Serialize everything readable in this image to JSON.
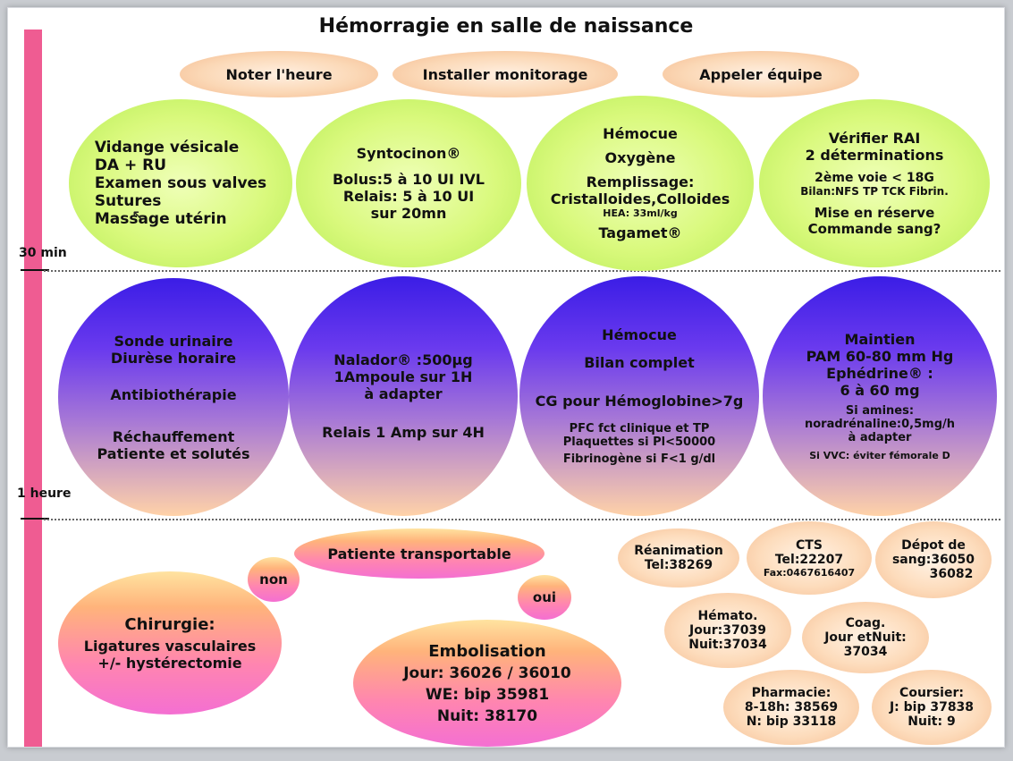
{
  "title": "Hémorragie en salle de naissance",
  "timeline": {
    "color": "#ef5c92",
    "mark_30": "30 min",
    "mark_60": "1 heure"
  },
  "header_pills": [
    "Noter l'heure",
    "Installer monitorage",
    "Appeler équipe"
  ],
  "phase1": {
    "c1": [
      "Vidange vésicale",
      "DA + RU",
      "Examen sous valves",
      "Sutures",
      "Massage utérin"
    ],
    "c2": [
      "Syntocinon®",
      "Bolus:5 à 10 UI IVL",
      "Relais: 5 à 10 UI",
      "sur 20mn"
    ],
    "c3": [
      "Hémocue",
      "Oxygène",
      "Remplissage:",
      "Cristalloides,Colloides",
      "HEA: 33ml/kg",
      "Tagamet®"
    ],
    "c4": [
      "Vérifier RAI",
      "2 déterminations",
      "2ème voie < 18G",
      "Bilan:NFS TP TCK Fibrin.",
      "Mise en réserve",
      "Commande sang?"
    ]
  },
  "phase2": {
    "c1": [
      "Sonde urinaire",
      "Diurèse horaire",
      "Antibiothérapie",
      "Réchauffement",
      "Patiente et solutés"
    ],
    "c2": [
      "Nalador® :500µg",
      "1Ampoule sur 1H",
      "à adapter",
      "Relais 1 Amp sur 4H"
    ],
    "c3": [
      "Hémocue",
      "Bilan complet",
      "CG pour Hémoglobine>7g",
      "PFC fct clinique et TP",
      "Plaquettes si Pl<50000",
      "Fibrinogène si F<1 g/dl"
    ],
    "c4": [
      "Maintien",
      "PAM 60-80 mm Hg",
      "Ephédrine® :",
      "6 à 60 mg",
      "Si amines:",
      "noradrénaline:0,5mg/h",
      "à adapter",
      "Si VVC: éviter fémorale D"
    ]
  },
  "phase3": {
    "transportable": "Patiente transportable",
    "non": "non",
    "oui": "oui",
    "chirurgie": [
      "Chirurgie:",
      "Ligatures vasculaires",
      "+/- hystérectomie"
    ],
    "embolisation": [
      "Embolisation",
      "Jour: 36026 / 36010",
      "WE: bip 35981",
      "Nuit: 38170"
    ]
  },
  "contacts": {
    "reanimation": [
      "Réanimation",
      "Tel:38269"
    ],
    "cts": [
      "CTS",
      "Tel:22207",
      "Fax:0467616407"
    ],
    "depot": [
      "Dépot de",
      "sang:36050",
      "36082"
    ],
    "hemato": [
      "Hémato.",
      "Jour:37039",
      "Nuit:37034"
    ],
    "coag": [
      "Coag.",
      "Jour etNuit:",
      "37034"
    ],
    "pharmacie": [
      "Pharmacie:",
      "8-18h: 38569",
      "N: bip 33118"
    ],
    "coursier": [
      "Coursier:",
      "J: bip 37838",
      "Nuit: 9"
    ]
  }
}
